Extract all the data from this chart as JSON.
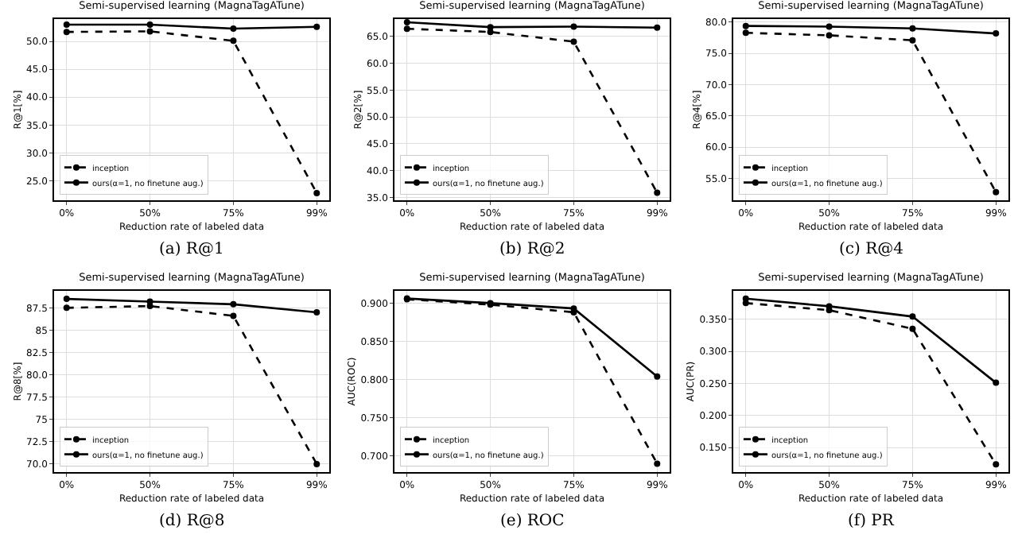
{
  "chart_data": [
    {
      "type": "line",
      "title": "Semi-supervised learning (MagnaTagATune)",
      "xlabel": "Reduction rate of labeled data",
      "ylabel": "R@1[%]",
      "annotations": [
        "(a) R@1"
      ],
      "categories": [
        "0%",
        "50%",
        "75%",
        "99%"
      ],
      "ylim": [
        21.5,
        54
      ],
      "yticks": [
        {
          "value": 25,
          "label": "25.0"
        },
        {
          "value": 30,
          "label": "30.0"
        },
        {
          "value": 35,
          "label": "35.0"
        },
        {
          "value": 40,
          "label": "40.0"
        },
        {
          "value": 45,
          "label": "45.0"
        },
        {
          "value": 50,
          "label": "50.0"
        }
      ],
      "grid": true,
      "legend": "bottom left",
      "marker": "circle",
      "series": [
        {
          "name": "inception",
          "color": "#000000",
          "line_style": "dashed",
          "values": [
            51.7,
            51.8,
            50.1,
            22.8
          ]
        },
        {
          "name": "ours(α=1, no finetune aug.)",
          "color": "#000000",
          "line_style": "solid",
          "values": [
            53.0,
            53.0,
            52.3,
            52.6
          ]
        }
      ]
    },
    {
      "type": "line",
      "title": "Semi-supervised learning (MagnaTagATune)",
      "xlabel": "Reduction rate of labeled data",
      "ylabel": "R@2[%]",
      "annotations": [
        "(b) R@2"
      ],
      "categories": [
        "0%",
        "50%",
        "75%",
        "99%"
      ],
      "ylim": [
        34.5,
        68.2
      ],
      "yticks": [
        {
          "value": 35,
          "label": "35.0"
        },
        {
          "value": 40,
          "label": "40.0"
        },
        {
          "value": 45,
          "label": "45.0"
        },
        {
          "value": 50,
          "label": "50.0"
        },
        {
          "value": 55,
          "label": "55.0"
        },
        {
          "value": 60,
          "label": "60.0"
        },
        {
          "value": 65,
          "label": "65.0"
        }
      ],
      "grid": true,
      "legend": "bottom left",
      "marker": "circle",
      "series": [
        {
          "name": "inception",
          "color": "#000000",
          "line_style": "dashed",
          "values": [
            66.4,
            65.8,
            64.0,
            35.9
          ]
        },
        {
          "name": "ours(α=1, no finetune aug.)",
          "color": "#000000",
          "line_style": "solid",
          "values": [
            67.6,
            66.7,
            66.8,
            66.6
          ]
        }
      ]
    },
    {
      "type": "line",
      "title": "Semi-supervised learning (MagnaTagATune)",
      "xlabel": "Reduction rate of labeled data",
      "ylabel": "R@4[%]",
      "annotations": [
        "(c) R@4"
      ],
      "categories": [
        "0%",
        "50%",
        "75%",
        "99%"
      ],
      "ylim": [
        51.5,
        80.5
      ],
      "yticks": [
        {
          "value": 55,
          "label": "55.0"
        },
        {
          "value": 60,
          "label": "60.0"
        },
        {
          "value": 65,
          "label": "65.0"
        },
        {
          "value": 70,
          "label": "70.0"
        },
        {
          "value": 75,
          "label": "75.0"
        },
        {
          "value": 80,
          "label": "80.0"
        }
      ],
      "grid": true,
      "legend": "bottom left",
      "marker": "circle",
      "series": [
        {
          "name": "inception",
          "color": "#000000",
          "line_style": "dashed",
          "values": [
            78.3,
            77.9,
            77.1,
            52.8
          ]
        },
        {
          "name": "ours(α=1, no finetune aug.)",
          "color": "#000000",
          "line_style": "solid",
          "values": [
            79.4,
            79.3,
            79.0,
            78.2
          ]
        }
      ]
    },
    {
      "type": "line",
      "title": "Semi-supervised learning (MagnaTagATune)",
      "xlabel": "Reduction rate of labeled data",
      "ylabel": "R@8[%]",
      "annotations": [
        "(d) R@8"
      ],
      "categories": [
        "0%",
        "50%",
        "75%",
        "99%"
      ],
      "ylim": [
        69.1,
        89.4
      ],
      "yticks": [
        {
          "value": 70,
          "label": "70.0"
        },
        72.5,
        75,
        77.5,
        {
          "value": 80,
          "label": "80.0"
        },
        82.5,
        85,
        87.5
      ],
      "grid": true,
      "legend": "bottom left",
      "marker": "circle",
      "series": [
        {
          "name": "inception",
          "color": "#000000",
          "line_style": "dashed",
          "values": [
            87.5,
            87.7,
            86.6,
            70.0
          ]
        },
        {
          "name": "ours(α=1, no finetune aug.)",
          "color": "#000000",
          "line_style": "solid",
          "values": [
            88.5,
            88.2,
            87.9,
            87.0
          ]
        }
      ]
    },
    {
      "type": "line",
      "title": "Semi-supervised learning (MagnaTagATune)",
      "xlabel": "Reduction rate of labeled data",
      "ylabel": "AUC(ROC)",
      "annotations": [
        "(e) ROC"
      ],
      "categories": [
        "0%",
        "50%",
        "75%",
        "99%"
      ],
      "ylim": [
        0.679,
        0.916
      ],
      "yticks": [
        {
          "value": 0.7,
          "label": "0.700"
        },
        {
          "value": 0.75,
          "label": "0.750"
        },
        {
          "value": 0.8,
          "label": "0.800"
        },
        {
          "value": 0.85,
          "label": "0.850"
        },
        {
          "value": 0.9,
          "label": "0.900"
        }
      ],
      "grid": true,
      "legend": "bottom left",
      "marker": "circle",
      "series": [
        {
          "name": "inception",
          "color": "#000000",
          "line_style": "dashed",
          "values": [
            0.905,
            0.898,
            0.888,
            0.69
          ]
        },
        {
          "name": "ours(α=1, no finetune aug.)",
          "color": "#000000",
          "line_style": "solid",
          "values": [
            0.906,
            0.9,
            0.893,
            0.804
          ]
        }
      ]
    },
    {
      "type": "line",
      "title": "Semi-supervised learning (MagnaTagATune)",
      "xlabel": "Reduction rate of labeled data",
      "ylabel": "AUC(PR)",
      "annotations": [
        "(f) PR"
      ],
      "categories": [
        "0%",
        "50%",
        "75%",
        "99%"
      ],
      "ylim": [
        0.112,
        0.394
      ],
      "yticks": [
        {
          "value": 0.15,
          "label": "0.150"
        },
        {
          "value": 0.2,
          "label": "0.200"
        },
        {
          "value": 0.25,
          "label": "0.250"
        },
        {
          "value": 0.3,
          "label": "0.300"
        },
        {
          "value": 0.35,
          "label": "0.350"
        }
      ],
      "grid": true,
      "legend": "bottom left",
      "marker": "circle",
      "series": [
        {
          "name": "inception",
          "color": "#000000",
          "line_style": "dashed",
          "values": [
            0.375,
            0.364,
            0.335,
            0.124
          ]
        },
        {
          "name": "ours(α=1, no finetune aug.)",
          "color": "#000000",
          "line_style": "solid",
          "values": [
            0.382,
            0.37,
            0.354,
            0.251
          ]
        }
      ]
    }
  ]
}
